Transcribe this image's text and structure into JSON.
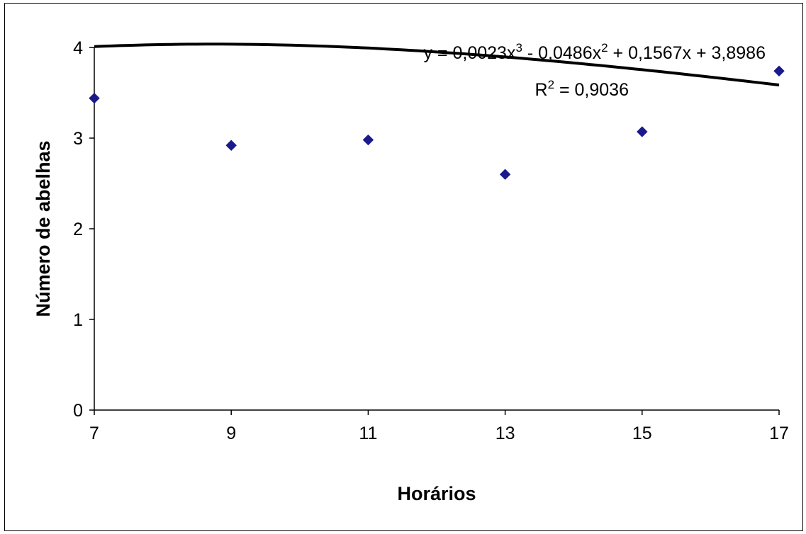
{
  "chart_data": {
    "type": "scatter",
    "title": "",
    "xlabel": "Horários",
    "ylabel": "Número de abelhas",
    "xlim": [
      7,
      17
    ],
    "ylim": [
      0,
      4
    ],
    "x_ticks": [
      7,
      9,
      11,
      13,
      15,
      17
    ],
    "x_tick_labels": [
      "7",
      "9",
      "11",
      "13",
      "15",
      "17"
    ],
    "y_ticks": [
      0,
      1,
      2,
      3,
      4
    ],
    "y_tick_labels": [
      "0",
      "1",
      "2",
      "3",
      "4"
    ],
    "grid": false,
    "legend": "none",
    "series": [
      {
        "x": [
          7,
          9,
          11,
          13,
          15,
          17
        ],
        "y": [
          3.44,
          2.92,
          2.98,
          2.6,
          3.07,
          3.74
        ],
        "marker": "diamond",
        "color": "#1a1a8c"
      }
    ],
    "trendline": {
      "type": "polynomial",
      "order": 3,
      "x_start": 1,
      "x_end": 6,
      "coefficients": [
        0.0023,
        -0.0486,
        0.1567,
        3.8986
      ],
      "color": "#000000"
    },
    "annotations": {
      "equation": {
        "prefix": "y = 0,0023x",
        "sup1": "3",
        "mid": " - 0,0486x",
        "sup2": "2",
        "suffix": " + 0,1567x + 3,8986"
      },
      "r2": {
        "prefix": "R",
        "sup": "2",
        "suffix": " = 0,9036"
      }
    }
  }
}
